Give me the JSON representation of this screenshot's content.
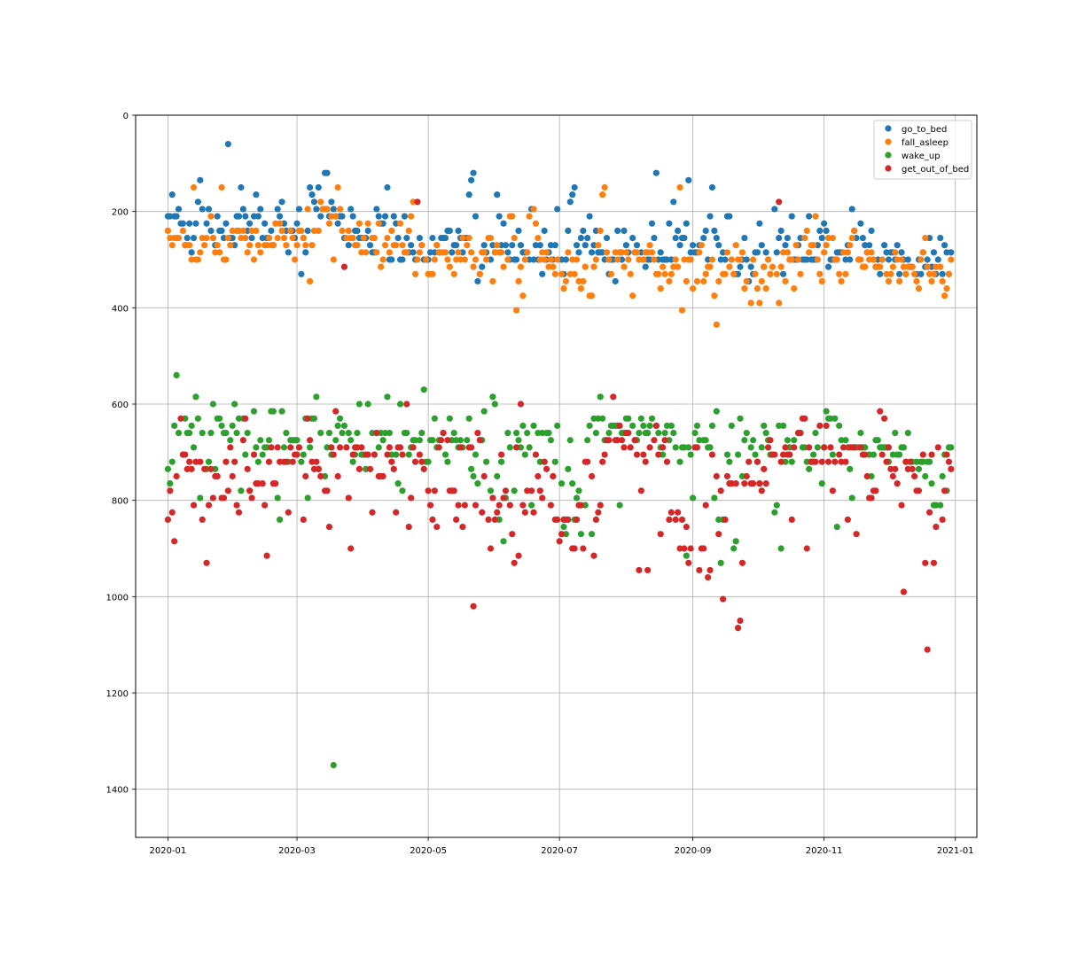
{
  "chart_data": {
    "type": "scatter",
    "title": "",
    "xlabel": "",
    "ylabel": "",
    "xlim": [
      "2019-12-17",
      "2021-01-11"
    ],
    "ylim": [
      1500,
      0
    ],
    "y_inverted": true,
    "grid": true,
    "legend_position": "top-right",
    "x_ticks": [
      "2020-01",
      "2020-03",
      "2020-05",
      "2020-07",
      "2020-09",
      "2020-11",
      "2021-01"
    ],
    "y_ticks": [
      0,
      200,
      400,
      600,
      800,
      1000,
      1200,
      1400
    ],
    "series": [
      {
        "name": "go_to_bed",
        "color": "#1f77b4"
      },
      {
        "name": "fall_asleep",
        "color": "#ff7f0e"
      },
      {
        "name": "wake_up",
        "color": "#2ca02c"
      },
      {
        "name": "get_out_of_bed",
        "color": "#d62728"
      }
    ],
    "go_to_bed_values": [
      210,
      210,
      165,
      210,
      210,
      195,
      225,
      225,
      270,
      255,
      225,
      285,
      255,
      225,
      180,
      135,
      195,
      225,
      195,
      240,
      255,
      270,
      210,
      240,
      240,
      255,
      225,
      60,
      255,
      255,
      270,
      210,
      210,
      150,
      195,
      210,
      240,
      225,
      255,
      210,
      165,
      210,
      195,
      255,
      225,
      255,
      255,
      240,
      270,
      195,
      210,
      180,
      225,
      240,
      285,
      240,
      240,
      255,
      225,
      195,
      330,
      255,
      285,
      240,
      150,
      165,
      180,
      195,
      150,
      210,
      195,
      120,
      120,
      210,
      180,
      195,
      210,
      225,
      210,
      210,
      255,
      270,
      195,
      210,
      240,
      240,
      255,
      255,
      255,
      255,
      240,
      270,
      285,
      285,
      195,
      210,
      225,
      225,
      210,
      150,
      300,
      300,
      210,
      225,
      255,
      300,
      300,
      210,
      255,
      285,
      270,
      285,
      300,
      255,
      270,
      300,
      300,
      300,
      285,
      255,
      285,
      270,
      285,
      255,
      255,
      255,
      240,
      240,
      285,
      270,
      270,
      240,
      255,
      285,
      255,
      255,
      165,
      135,
      120,
      210,
      345,
      330,
      315,
      270,
      285,
      300,
      270,
      285,
      165,
      210,
      270,
      225,
      270,
      285,
      300,
      270,
      300,
      300,
      240,
      270,
      285,
      285,
      285,
      300,
      195,
      300,
      270,
      300,
      270,
      330,
      240,
      300,
      285,
      270,
      300,
      270,
      195,
      300,
      330,
      300,
      240,
      180,
      165,
      150,
      270,
      285,
      255,
      240,
      270,
      255,
      210,
      285,
      270,
      240,
      285,
      285,
      285,
      300,
      255,
      330,
      300,
      300,
      345,
      240,
      285,
      300,
      240,
      270,
      285,
      255,
      285,
      270,
      300,
      285,
      300,
      315,
      300,
      300,
      225,
      255,
      120,
      300,
      285,
      300,
      300,
      300,
      225,
      300,
      180,
      255,
      240,
      270,
      255,
      255,
      225,
      135,
      285,
      270,
      285,
      285,
      270,
      255,
      240,
      300,
      210,
      150,
      240,
      255,
      270,
      300,
      285,
      300,
      210,
      210,
      300,
      330,
      330,
      330,
      315,
      300,
      255,
      300,
      345,
      315,
      330,
      285,
      285,
      225,
      270,
      315,
      285,
      300,
      330,
      195,
      285,
      255,
      240,
      330,
      270,
      255,
      300,
      210,
      300,
      300,
      270,
      255,
      300,
      300,
      300,
      210,
      300,
      300,
      300,
      270,
      240,
      255,
      225,
      240,
      315,
      300,
      300,
      300,
      285,
      285,
      285,
      300,
      270,
      300,
      195,
      240,
      255,
      300,
      225,
      255,
      270,
      285,
      270,
      240,
      300,
      315,
      300,
      330,
      300,
      270,
      285,
      300,
      285,
      285,
      300,
      270,
      330,
      285,
      300,
      330,
      300,
      315,
      315,
      330,
      300,
      330,
      285,
      315,
      300,
      255,
      315,
      285,
      330,
      300,
      255,
      330,
      270,
      285,
      330,
      285
    ],
    "fall_asleep_values": [
      240,
      255,
      270,
      255,
      255,
      255,
      240,
      270,
      270,
      270,
      300,
      150,
      300,
      300,
      285,
      255,
      270,
      255,
      210,
      255,
      285,
      270,
      285,
      150,
      300,
      300,
      255,
      270,
      240,
      240,
      240,
      255,
      240,
      255,
      285,
      270,
      240,
      300,
      240,
      270,
      285,
      270,
      270,
      255,
      270,
      270,
      225,
      255,
      225,
      240,
      255,
      270,
      240,
      255,
      300,
      270,
      240,
      240,
      255,
      270,
      195,
      345,
      270,
      240,
      240,
      180,
      195,
      195,
      195,
      225,
      210,
      300,
      210,
      150,
      195,
      240,
      255,
      240,
      255,
      255,
      270,
      270,
      225,
      285,
      255,
      285,
      225,
      255,
      255,
      285,
      225,
      315,
      300,
      270,
      255,
      285,
      240,
      270,
      270,
      225,
      270,
      285,
      285,
      240,
      210,
      180,
      330,
      300,
      285,
      270,
      300,
      330,
      330,
      330,
      300,
      270,
      285,
      285,
      285,
      285,
      300,
      315,
      330,
      300,
      285,
      300,
      255,
      300,
      270,
      255,
      285,
      315,
      300,
      330,
      285,
      285,
      300,
      255,
      255,
      345,
      285,
      270,
      285,
      285,
      315,
      300,
      210,
      210,
      255,
      405,
      345,
      315,
      375,
      300,
      285,
      210,
      195,
      225,
      255,
      300,
      285,
      300,
      285,
      315,
      300,
      315,
      330,
      300,
      330,
      360,
      345,
      285,
      330,
      300,
      330,
      300,
      345,
      360,
      345,
      315,
      375,
      375,
      315,
      300,
      270,
      240,
      165,
      150,
      285,
      300,
      330,
      285,
      300,
      285,
      285,
      315,
      285,
      300,
      330,
      375,
      285,
      285,
      300,
      300,
      285,
      285,
      270,
      285,
      300,
      330,
      330,
      360,
      315,
      330,
      345,
      330,
      315,
      300,
      315,
      150,
      405,
      300,
      345,
      300,
      300,
      360,
      345,
      285,
      270,
      345,
      330,
      315,
      315,
      300,
      375,
      435,
      345,
      330,
      330,
      285,
      315,
      300,
      330,
      270,
      300,
      300,
      285,
      360,
      345,
      390,
      300,
      330,
      360,
      390,
      345,
      315,
      360,
      300,
      330,
      315,
      330,
      390,
      315,
      285,
      345,
      285,
      300,
      300,
      360,
      270,
      300,
      330,
      255,
      240,
      285,
      270,
      270,
      210,
      300,
      330,
      345,
      285,
      270,
      255,
      255,
      300,
      300,
      330,
      345,
      285,
      330,
      285,
      270,
      255,
      240,
      300,
      300,
      315,
      315,
      285,
      300,
      285,
      300,
      315,
      315,
      315,
      300,
      330,
      345,
      330,
      315,
      285,
      300,
      345,
      300,
      315,
      330,
      315,
      315,
      330,
      345,
      360,
      300,
      285,
      255,
      315,
      330,
      345,
      330,
      315,
      315,
      345,
      375,
      360,
      330,
      300
    ],
    "wake_up_values": [
      735,
      765,
      720,
      645,
      540,
      660,
      705,
      630,
      660,
      660,
      645,
      690,
      585,
      630,
      795,
      660,
      735,
      720,
      660,
      600,
      735,
      630,
      630,
      645,
      660,
      660,
      675,
      645,
      600,
      660,
      630,
      780,
      630,
      705,
      660,
      780,
      615,
      690,
      720,
      675,
      705,
      690,
      690,
      675,
      615,
      615,
      795,
      840,
      615,
      690,
      660,
      720,
      675,
      675,
      675,
      675,
      720,
      705,
      630,
      795,
      690,
      630,
      630,
      585,
      735,
      660,
      750,
      690,
      660,
      705,
      1350,
      675,
      645,
      630,
      660,
      645,
      660,
      675,
      720,
      705,
      660,
      600,
      705,
      705,
      735,
      600,
      660,
      705,
      660,
      690,
      660,
      675,
      660,
      585,
      660,
      705,
      705,
      765,
      600,
      780,
      660,
      660,
      705,
      690,
      675,
      675,
      675,
      660,
      570,
      720,
      720,
      675,
      675,
      630,
      690,
      675,
      660,
      705,
      720,
      630,
      675,
      660,
      675,
      690,
      675,
      690,
      675,
      630,
      735,
      750,
      705,
      765,
      675,
      675,
      615,
      720,
      780,
      585,
      600,
      750,
      840,
      720,
      885,
      795,
      660,
      690,
      780,
      660,
      675,
      690,
      645,
      705,
      660,
      690,
      810,
      645,
      660,
      720,
      660,
      720,
      660,
      660,
      675,
      750,
      720,
      645,
      765,
      855,
      870,
      735,
      675,
      765,
      840,
      795,
      780,
      870,
      810,
      675,
      645,
      870,
      630,
      660,
      630,
      585,
      630,
      675,
      660,
      645,
      645,
      645,
      645,
      810,
      660,
      660,
      630,
      630,
      645,
      675,
      675,
      660,
      630,
      645,
      660,
      660,
      645,
      630,
      645,
      660,
      690,
      705,
      660,
      645,
      675,
      645,
      660,
      690,
      720,
      690,
      690,
      915,
      690,
      705,
      795,
      660,
      645,
      675,
      675,
      675,
      690,
      690,
      645,
      795,
      615,
      840,
      930,
      840,
      705,
      720,
      645,
      900,
      885,
      705,
      630,
      750,
      675,
      660,
      690,
      675,
      705,
      720,
      765,
      690,
      645,
      660,
      675,
      705,
      825,
      810,
      645,
      900,
      645,
      720,
      675,
      690,
      720,
      675,
      660,
      660,
      690,
      690,
      720,
      735,
      720,
      705,
      660,
      690,
      765,
      690,
      615,
      630,
      630,
      705,
      630,
      855,
      645,
      675,
      675,
      690,
      735,
      795,
      690,
      690,
      690,
      660,
      690,
      690,
      705,
      750,
      705,
      675,
      675,
      690,
      690,
      690,
      690,
      720,
      705,
      660,
      705,
      705,
      690,
      690,
      720,
      660,
      720,
      720,
      720,
      735,
      720,
      720,
      750,
      720,
      720,
      765,
      810,
      810,
      810,
      750,
      705,
      780,
      690,
      690
    ],
    "get_out_of_bed_values": [
      840,
      780,
      825,
      885,
      750,
      630,
      705,
      705,
      735,
      720,
      735,
      810,
      720,
      720,
      840,
      735,
      930,
      810,
      735,
      795,
      750,
      750,
      795,
      795,
      720,
      780,
      690,
      750,
      720,
      810,
      825,
      675,
      630,
      735,
      780,
      795,
      705,
      765,
      765,
      765,
      810,
      915,
      720,
      690,
      765,
      765,
      690,
      720,
      720,
      720,
      825,
      690,
      720,
      705,
      705,
      690,
      840,
      750,
      630,
      675,
      720,
      735,
      720,
      735,
      750,
      780,
      780,
      855,
      690,
      705,
      615,
      750,
      690,
      315,
      690,
      795,
      900,
      705,
      690,
      690,
      735,
      690,
      705,
      705,
      735,
      825,
      705,
      660,
      750,
      750,
      750,
      705,
      690,
      720,
      735,
      825,
      690,
      690,
      705,
      600,
      855,
      795,
      690,
      720,
      180,
      705,
      720,
      735,
      780,
      810,
      840,
      780,
      855,
      690,
      675,
      660,
      675,
      780,
      780,
      780,
      840,
      810,
      690,
      855,
      810,
      690,
      690,
      1020,
      810,
      660,
      675,
      825,
      750,
      840,
      900,
      795,
      840,
      825,
      810,
      705,
      795,
      780,
      810,
      870,
      930,
      690,
      915,
      600,
      810,
      825,
      780,
      780,
      825,
      705,
      750,
      780,
      795,
      720,
      735,
      810,
      750,
      840,
      840,
      885,
      870,
      840,
      840,
      840,
      900,
      900,
      840,
      810,
      810,
      900,
      720,
      720,
      750,
      915,
      840,
      825,
      810,
      720,
      705,
      675,
      675,
      585,
      675,
      675,
      645,
      675,
      690,
      660,
      660,
      690,
      675,
      705,
      945,
      780,
      705,
      720,
      945,
      690,
      675,
      645,
      705,
      870,
      690,
      675,
      720,
      840,
      825,
      840,
      825,
      900,
      840,
      900,
      855,
      930,
      900,
      690,
      690,
      945,
      900,
      900,
      810,
      960,
      945,
      705,
      750,
      870,
      780,
      1005,
      840,
      750,
      765,
      765,
      765,
      1065,
      1050,
      930,
      765,
      750,
      720,
      765,
      765,
      720,
      765,
      780,
      735,
      765,
      690,
      675,
      705,
      705,
      180,
      720,
      705,
      690,
      705,
      705,
      840,
      690,
      660,
      660,
      630,
      630,
      900,
      690,
      720,
      720,
      720,
      645,
      720,
      690,
      645,
      720,
      690,
      780,
      720,
      705,
      720,
      690,
      720,
      840,
      690,
      690,
      690,
      870,
      690,
      705,
      705,
      750,
      795,
      795,
      780,
      780,
      615,
      705,
      630,
      720,
      690,
      735,
      750,
      735,
      765,
      810,
      990,
      720,
      735,
      720,
      735,
      750,
      780,
      780,
      705,
      930,
      1110,
      825,
      705,
      930,
      855,
      690,
      840,
      780,
      705,
      720,
      735
    ],
    "axes": {
      "x_tick_labels": [
        "2020-01",
        "2020-03",
        "2020-05",
        "2020-07",
        "2020-09",
        "2020-11",
        "2021-01"
      ],
      "y_tick_labels": [
        "0",
        "200",
        "400",
        "600",
        "800",
        "1000",
        "1200",
        "1400"
      ]
    },
    "legend": {
      "entries": [
        "go_to_bed",
        "fall_asleep",
        "wake_up",
        "get_out_of_bed"
      ]
    }
  }
}
